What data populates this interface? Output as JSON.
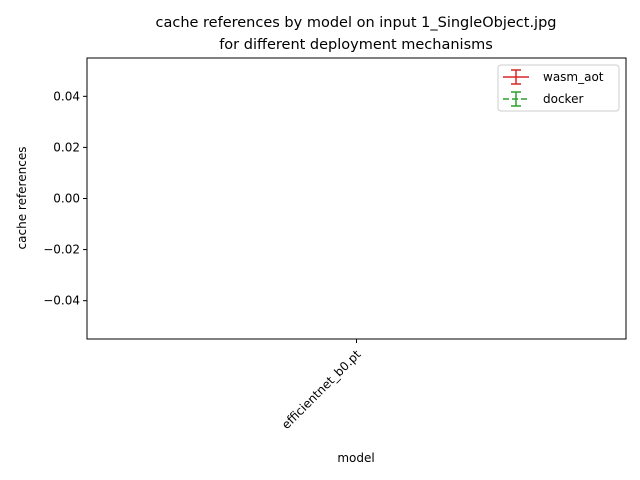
{
  "chart_data": {
    "type": "line",
    "title_line1": "cache references by model on input 1_SingleObject.jpg",
    "title_line2": "for different deployment mechanisms",
    "xlabel": "model",
    "ylabel": "cache references",
    "categories": [
      "efficientnet_b0.pt"
    ],
    "ylim": [
      -0.055,
      0.055
    ],
    "yticks": [
      0.04,
      0.02,
      0.0,
      -0.02,
      -0.04
    ],
    "ytick_labels": [
      "0.04",
      "0.02",
      "0.00",
      "−0.02",
      "−0.04"
    ],
    "grid": false,
    "legend_position": "top-right",
    "series": [
      {
        "name": "wasm_aot",
        "color": "#d62728",
        "linestyle": "solid",
        "values": [
          null
        ]
      },
      {
        "name": "docker",
        "color": "#2ca02c",
        "linestyle": "dashed",
        "values": [
          null
        ]
      }
    ]
  }
}
